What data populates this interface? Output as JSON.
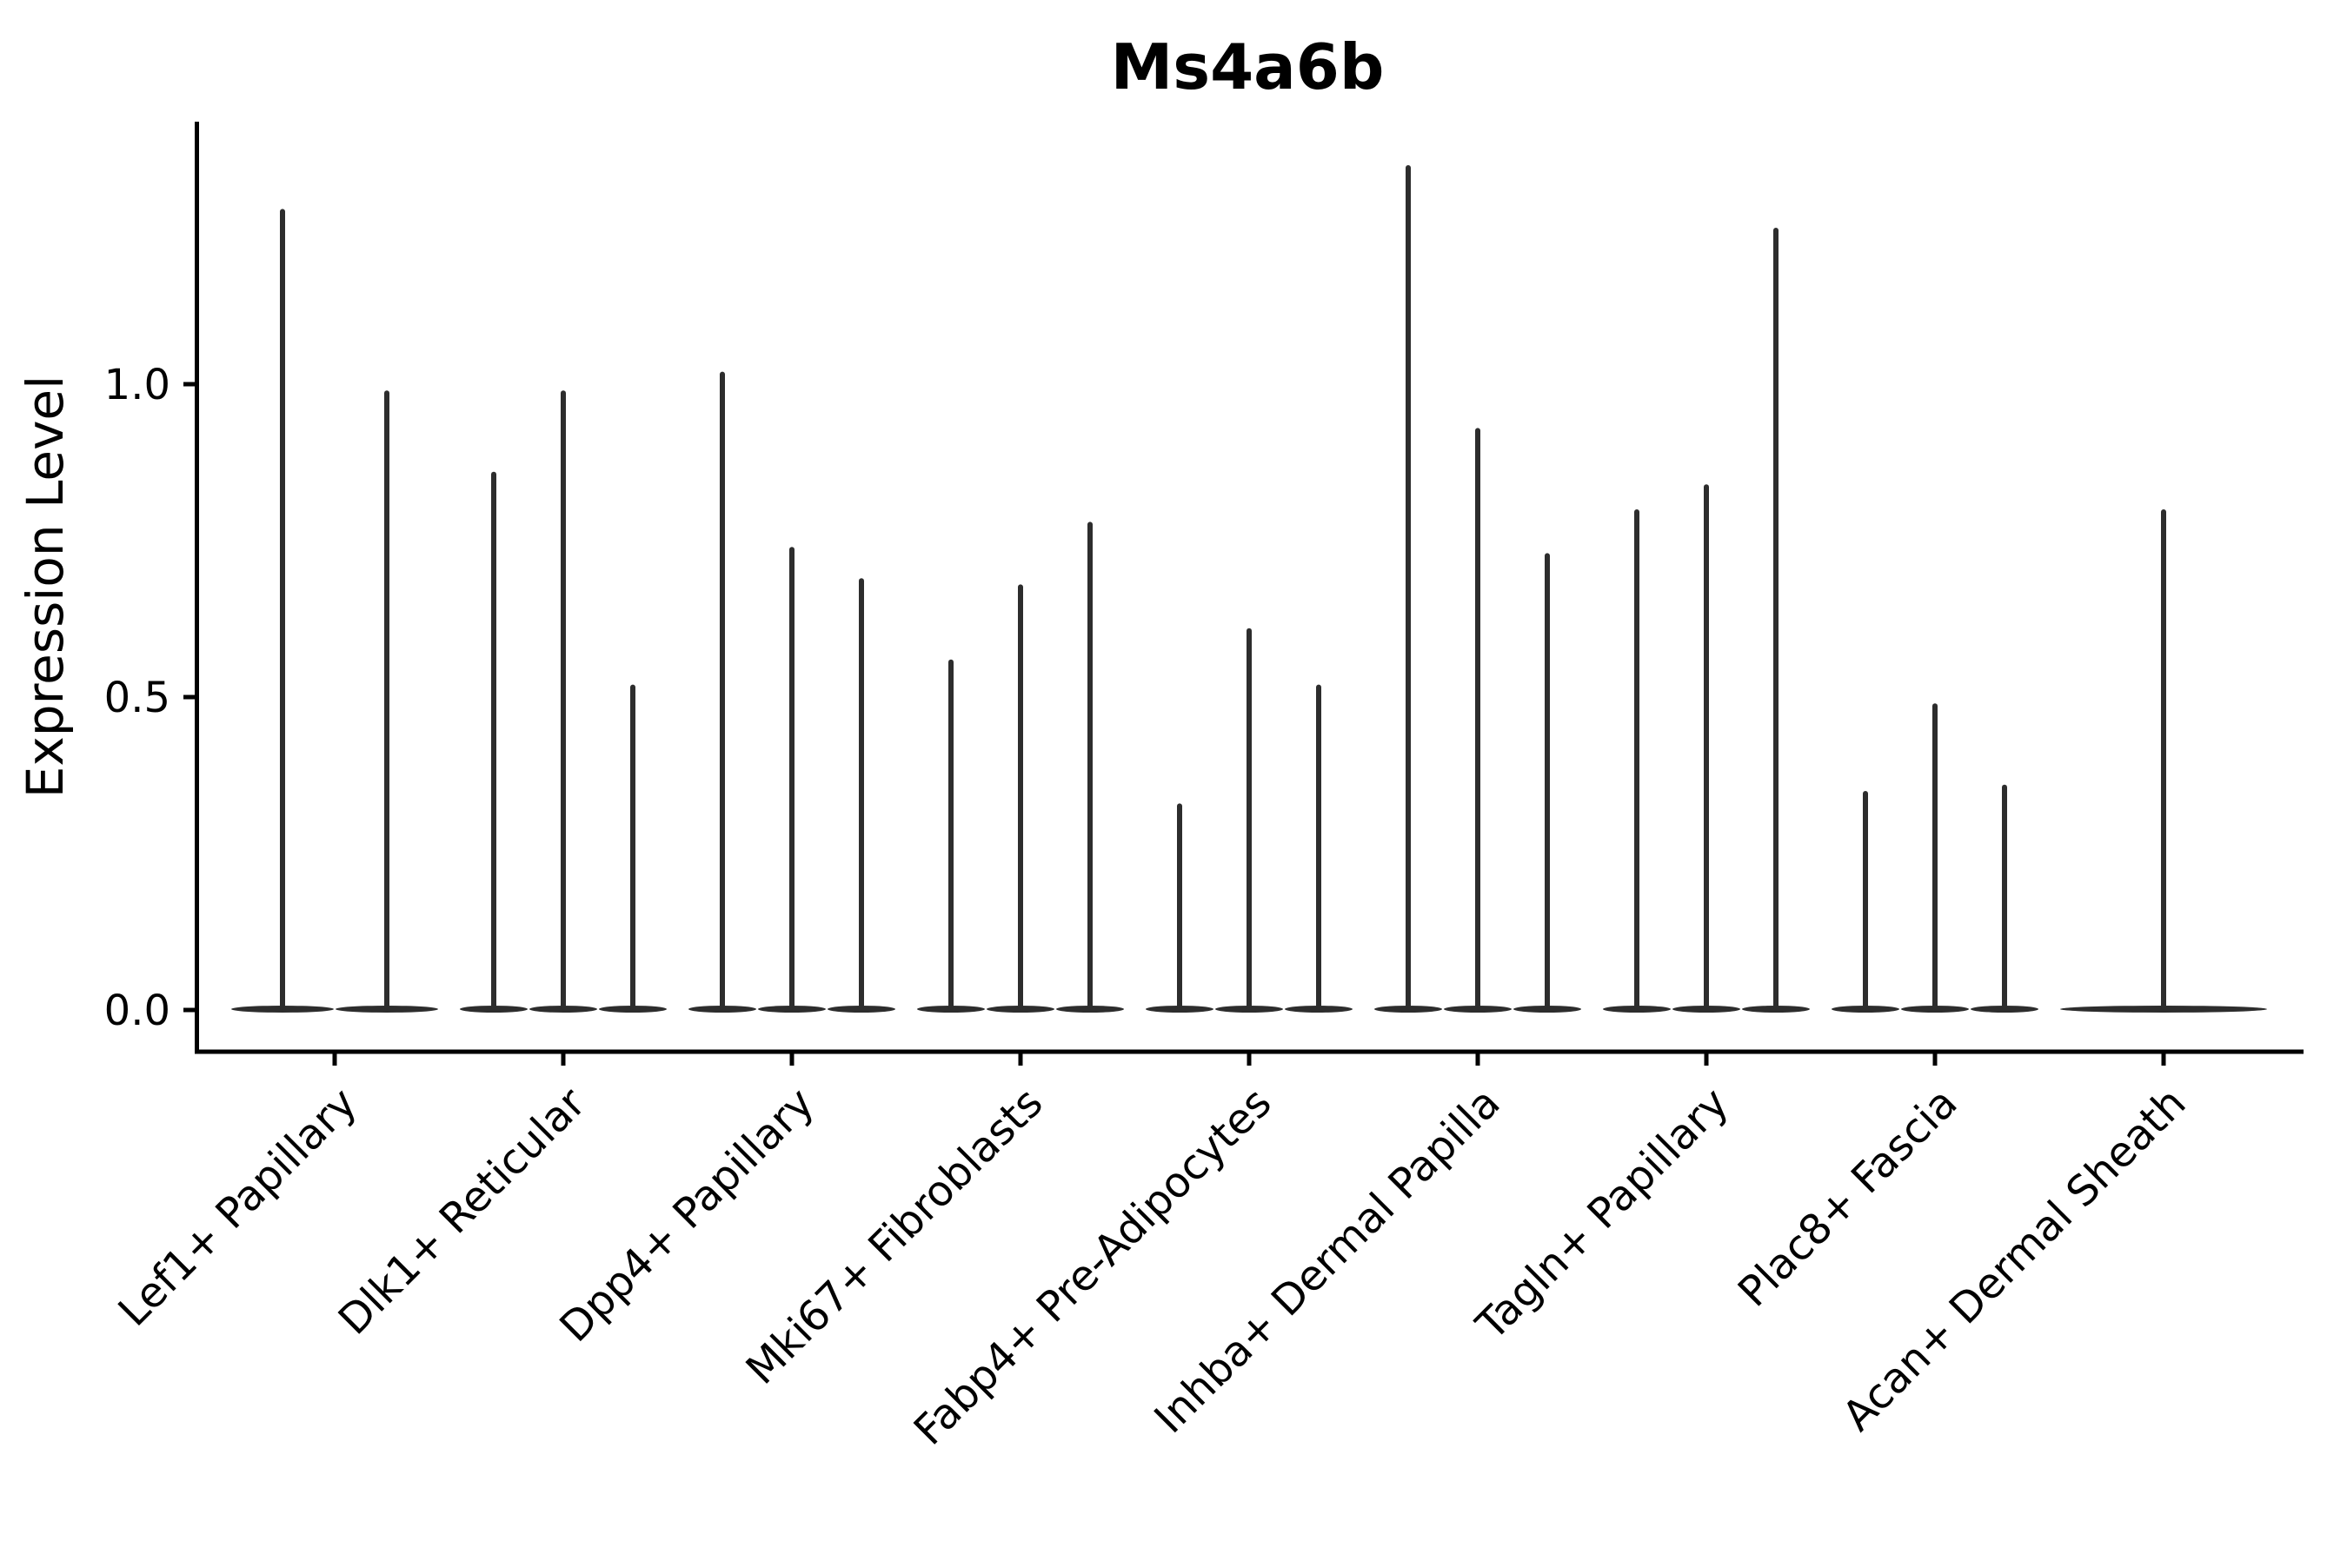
{
  "figure": {
    "title": "Ms4a6b"
  },
  "chart_data": {
    "type": "violin",
    "title": "Ms4a6b",
    "xlabel": "",
    "ylabel": "Expression Level",
    "ytick_values": [
      0.0,
      0.5,
      1.0
    ],
    "ytick_labels": [
      "0.0",
      "0.5",
      "1.0"
    ],
    "ylim": [
      -0.07,
      1.42
    ],
    "grid": false,
    "legend_position": "none",
    "violin_color": "#2d2d2d",
    "axis_color": "#000000",
    "background_color": "#ffffff",
    "description": "Stacked/split violin plot of single-gene expression; each category contains one or more extremely thin violins whose density bulk sits at expression 0 (flat pancake on the baseline) with a hair-thin spike rising to the maximum expression value.",
    "categories": [
      "Lef1+ Papillary",
      "Dlk1+ Reticular",
      "Dpp4+ Papillary",
      "Mki67+ Fibroblasts",
      "Fabp4+ Pre-Adipocytes",
      "Inhba+ Dermal Papilla",
      "Tagln+ Papillary",
      "Plac8+ Fascia",
      "Acan+ Dermal Sheath"
    ],
    "series": [
      {
        "category": "Lef1+ Papillary",
        "n_violins": 2,
        "violin_max_expression": [
          1.28,
          0.99
        ],
        "density_bulk_at": 0
      },
      {
        "category": "Dlk1+ Reticular",
        "n_violins": 3,
        "violin_max_expression": [
          0.86,
          0.99,
          0.52
        ],
        "density_bulk_at": 0
      },
      {
        "category": "Dpp4+ Papillary",
        "n_violins": 3,
        "violin_max_expression": [
          1.02,
          0.74,
          0.69
        ],
        "density_bulk_at": 0
      },
      {
        "category": "Mki67+ Fibroblasts",
        "n_violins": 3,
        "violin_max_expression": [
          0.56,
          0.68,
          0.78
        ],
        "density_bulk_at": 0
      },
      {
        "category": "Fabp4+ Pre-Adipocytes",
        "n_violins": 3,
        "violin_max_expression": [
          0.33,
          0.61,
          0.52
        ],
        "density_bulk_at": 0
      },
      {
        "category": "Inhba+ Dermal Papilla",
        "n_violins": 3,
        "violin_max_expression": [
          1.35,
          0.93,
          0.73
        ],
        "density_bulk_at": 0
      },
      {
        "category": "Tagln+ Papillary",
        "n_violins": 3,
        "violin_max_expression": [
          0.8,
          0.84,
          1.25
        ],
        "density_bulk_at": 0
      },
      {
        "category": "Plac8+ Fascia",
        "n_violins": 3,
        "violin_max_expression": [
          0.35,
          0.49,
          0.36
        ],
        "density_bulk_at": 0
      },
      {
        "category": "Acan+ Dermal Sheath",
        "n_violins": 1,
        "violin_max_expression": [
          0.8
        ],
        "density_bulk_at": 0
      }
    ]
  }
}
